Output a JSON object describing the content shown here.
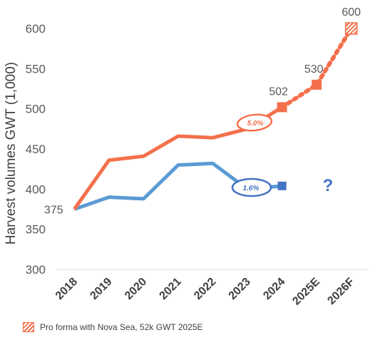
{
  "chart_data": {
    "type": "line",
    "title": "",
    "xlabel": "",
    "ylabel": "Harvest volumes GWT (1,000)",
    "categories": [
      "2018",
      "2019",
      "2020",
      "2021",
      "2022",
      "2023",
      "2024",
      "2025E",
      "2026F"
    ],
    "ylim": [
      300,
      600
    ],
    "yticks": [
      "300",
      "350",
      "400",
      "450",
      "500",
      "550",
      "600"
    ],
    "grid": false,
    "series": [
      {
        "name": "orange",
        "color": "#f4704c",
        "values": [
          375,
          436,
          441,
          466,
          464,
          475,
          502,
          530,
          600
        ],
        "labels": {
          "0": "375",
          "6": "502",
          "7": "530",
          "8": "600"
        }
      },
      {
        "name": "blue",
        "color": "#5b9bd5",
        "values": [
          375,
          390,
          388,
          430,
          432,
          400,
          404,
          null,
          null
        ]
      }
    ],
    "annotations": [
      {
        "text": "5.0%",
        "color": "#f4704c"
      },
      {
        "text": "1.6%",
        "color": "#4472c4"
      },
      {
        "text": "?",
        "color": "#4472c4"
      }
    ],
    "legend": {
      "position": "bottom-left",
      "entries": [
        {
          "text": "Pro forma with Nova Sea, 52k GWT 2025E",
          "swatch": "hatched",
          "color": "#f4704c"
        }
      ]
    }
  }
}
